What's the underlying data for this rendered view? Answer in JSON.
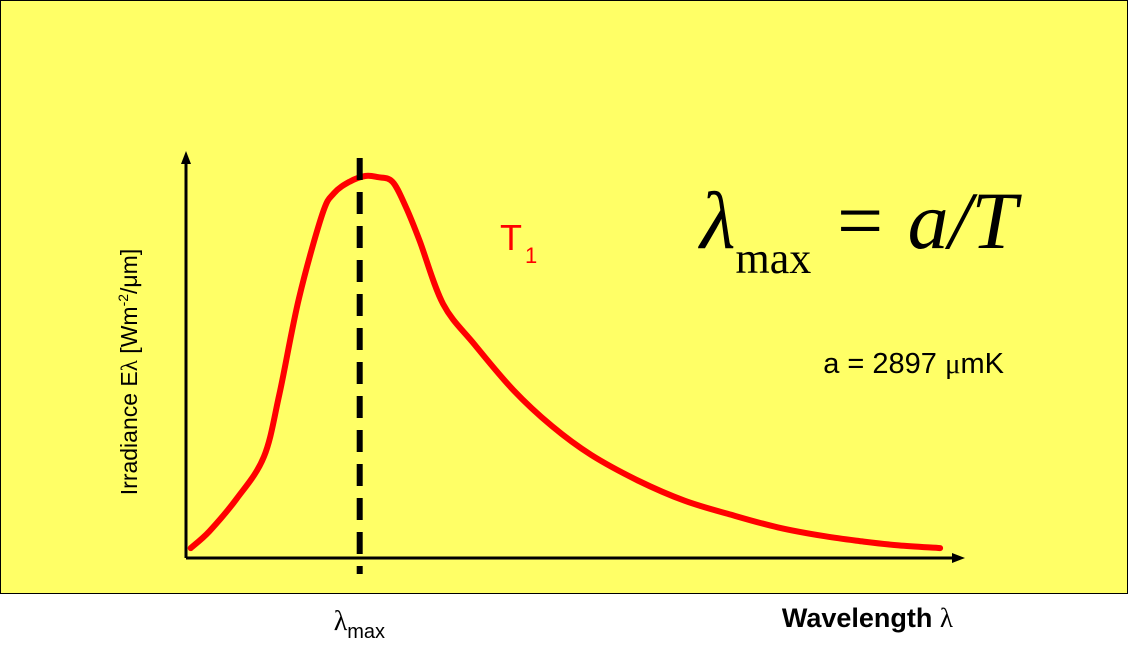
{
  "colors": {
    "panel_background": "#FFFF66",
    "curve": "#FF0000",
    "axis": "#000000",
    "marker_line": "#000000"
  },
  "chart_data": {
    "type": "line",
    "title": "",
    "ylabel": {
      "prefix": "Irradiance E",
      "symbol": "λ",
      "unit_open": " [Wm",
      "unit_sup": "-2",
      "unit_close": "/μm]"
    },
    "xlabel": {
      "text": "Wavelength ",
      "symbol": "λ"
    },
    "xtick_labels": [
      {
        "symbol": "λ",
        "subscript": "max"
      }
    ],
    "axis_ticks_numeric": false,
    "xlim": [
      0,
      1
    ],
    "ylim": [
      0,
      1
    ],
    "grid": false,
    "series": [
      {
        "name": "T",
        "name_subscript": "1",
        "x": [
          0.006,
          0.03,
          0.065,
          0.1,
          0.12,
          0.145,
          0.175,
          0.19,
          0.21,
          0.23,
          0.246,
          0.265,
          0.282,
          0.3,
          0.33,
          0.37,
          0.42,
          0.47,
          0.52,
          0.58,
          0.64,
          0.7,
          0.76,
          0.82,
          0.87,
          0.915,
          0.968
        ],
        "y": [
          0.026,
          0.07,
          0.155,
          0.265,
          0.43,
          0.68,
          0.9,
          0.955,
          0.985,
          1.0,
          0.997,
          0.985,
          0.92,
          0.83,
          0.665,
          0.56,
          0.44,
          0.345,
          0.27,
          0.203,
          0.15,
          0.113,
          0.08,
          0.057,
          0.043,
          0.033,
          0.026
        ]
      }
    ],
    "peak_marker": {
      "x": 0.223,
      "style": "dashed vertical line"
    },
    "annotations": {
      "curve_label": {
        "text": "T",
        "subscript": "1"
      },
      "formula": {
        "lambda": "λ",
        "sub": "max",
        "rhs": " = a/T"
      },
      "constant": {
        "text": "a = 2897 ",
        "mu": "μ",
        "unit": "mK"
      }
    }
  }
}
